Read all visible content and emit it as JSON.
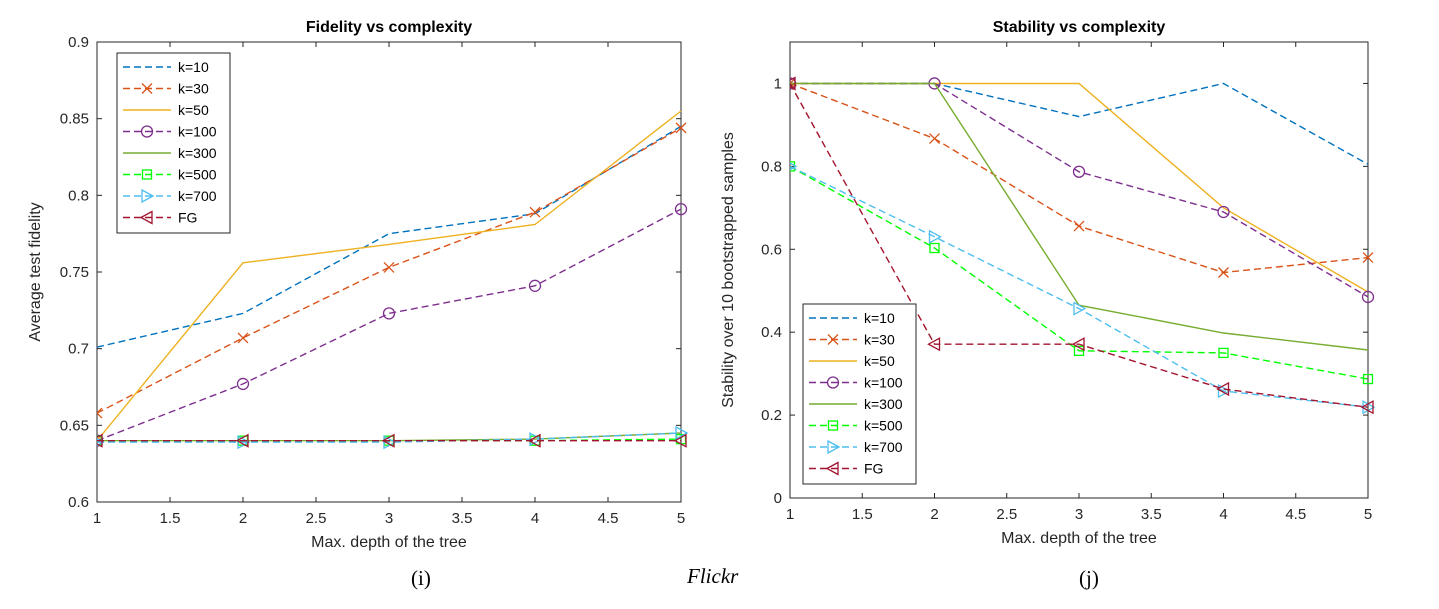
{
  "figure": {
    "caption_left": "(i)",
    "caption_center": "Flickr",
    "caption_right": "(j)"
  },
  "series_styles": [
    {
      "name": "k=10",
      "color": "#0072BD",
      "dash": "dash",
      "marker": "none"
    },
    {
      "name": "k=30",
      "color": "#D95319",
      "dash": "dash",
      "marker": "x"
    },
    {
      "name": "k=50",
      "color": "#EDB120",
      "dash": "solid",
      "marker": "none"
    },
    {
      "name": "k=100",
      "color": "#7E2F8E",
      "dash": "dash",
      "marker": "circle"
    },
    {
      "name": "k=300",
      "color": "#77AC30",
      "dash": "solid",
      "marker": "none"
    },
    {
      "name": "k=500",
      "color": "#00FF00",
      "dash": "dash",
      "marker": "square"
    },
    {
      "name": "k=700",
      "color": "#4DBEEE",
      "dash": "dash",
      "marker": "triangle-right"
    },
    {
      "name": "FG",
      "color": "#A2142F",
      "dash": "dash",
      "marker": "triangle-left"
    }
  ],
  "chart_data": [
    {
      "type": "line",
      "title": "Fidelity vs complexity",
      "xlabel": "Max. depth of the tree",
      "ylabel": "Average test fidelity",
      "xlim": [
        1,
        5
      ],
      "ylim": [
        0.6,
        0.9
      ],
      "xticks": [
        1,
        1.5,
        2,
        2.5,
        3,
        3.5,
        4,
        4.5,
        5
      ],
      "xtick_labels": [
        "1",
        "1.5",
        "2",
        "2.5",
        "3",
        "3.5",
        "4",
        "4.5",
        "5"
      ],
      "yticks": [
        0.6,
        0.65,
        0.7,
        0.75,
        0.8,
        0.85,
        0.9
      ],
      "ytick_labels": [
        "0.6",
        "0.65",
        "0.7",
        "0.75",
        "0.8",
        "0.85",
        "0.9"
      ],
      "grid": false,
      "legend_position": "top-left",
      "x": [
        1,
        2,
        3,
        4,
        5
      ],
      "series": [
        {
          "name": "k=10",
          "values": [
            0.701,
            0.723,
            0.775,
            0.788,
            0.845
          ]
        },
        {
          "name": "k=30",
          "values": [
            0.658,
            0.707,
            0.753,
            0.789,
            0.844
          ]
        },
        {
          "name": "k=50",
          "values": [
            0.64,
            0.756,
            0.768,
            0.781,
            0.855
          ]
        },
        {
          "name": "k=100",
          "values": [
            0.64,
            0.677,
            0.723,
            0.741,
            0.791
          ]
        },
        {
          "name": "k=300",
          "values": [
            0.64,
            0.64,
            0.64,
            0.641,
            0.645
          ]
        },
        {
          "name": "k=500",
          "values": [
            0.64,
            0.64,
            0.64,
            0.64,
            0.641
          ]
        },
        {
          "name": "k=700",
          "values": [
            0.639,
            0.639,
            0.639,
            0.641,
            0.645
          ]
        },
        {
          "name": "FG",
          "values": [
            0.64,
            0.64,
            0.64,
            0.64,
            0.64
          ]
        }
      ]
    },
    {
      "type": "line",
      "title": "Stability vs complexity",
      "xlabel": "Max. depth of the tree",
      "ylabel": "Stability over 10 bootstrapped samples",
      "xlim": [
        1,
        5
      ],
      "ylim": [
        0,
        1.1
      ],
      "xticks": [
        1,
        1.5,
        2,
        2.5,
        3,
        3.5,
        4,
        4.5,
        5
      ],
      "xtick_labels": [
        "1",
        "1.5",
        "2",
        "2.5",
        "3",
        "3.5",
        "4",
        "4.5",
        "5"
      ],
      "yticks": [
        0,
        0.2,
        0.4,
        0.6,
        0.8,
        1
      ],
      "ytick_labels": [
        "0",
        "0.2",
        "0.4",
        "0.6",
        "0.8",
        "1"
      ],
      "grid": false,
      "legend_position": "bottom-left",
      "x": [
        1,
        2,
        3,
        4,
        5
      ],
      "series": [
        {
          "name": "k=10",
          "values": [
            1.0,
            1.0,
            0.92,
            1.0,
            0.805
          ]
        },
        {
          "name": "k=30",
          "values": [
            1.0,
            0.867,
            0.656,
            0.544,
            0.58
          ]
        },
        {
          "name": "k=50",
          "values": [
            1.0,
            1.0,
            1.0,
            0.7,
            0.497
          ]
        },
        {
          "name": "k=100",
          "values": [
            1.0,
            1.0,
            0.787,
            0.69,
            0.485
          ]
        },
        {
          "name": "k=300",
          "values": [
            1.0,
            1.0,
            0.465,
            0.398,
            0.357
          ]
        },
        {
          "name": "k=500",
          "values": [
            0.8,
            0.603,
            0.355,
            0.35,
            0.287
          ]
        },
        {
          "name": "k=700",
          "values": [
            0.8,
            0.63,
            0.457,
            0.258,
            0.219
          ]
        },
        {
          "name": "FG",
          "values": [
            1.0,
            0.371,
            0.371,
            0.263,
            0.219
          ]
        }
      ]
    }
  ]
}
